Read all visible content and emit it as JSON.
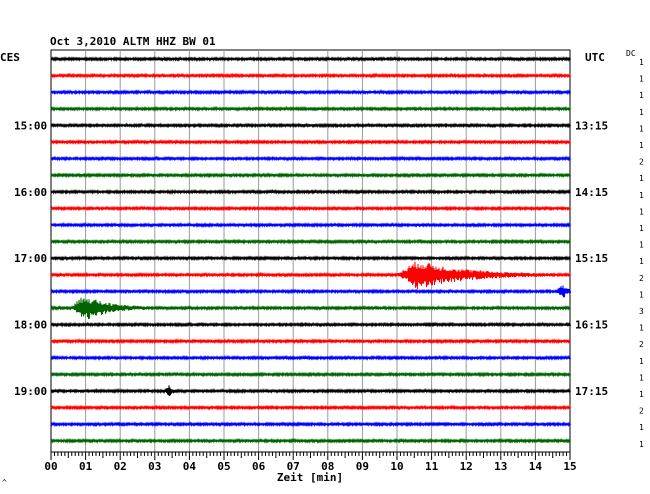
{
  "header": {
    "title": "Oct 3,2010   ALTM HHZ BW 01",
    "left_zone": "CES",
    "right_zone": "UTC",
    "corner_tag": "DC"
  },
  "chart_data": {
    "type": "line",
    "title": "Oct 3,2010   ALTM HHZ BW 01",
    "xlabel": "Zeit [min]",
    "ylabel": "",
    "xlim": [
      0,
      15
    ],
    "x_ticks": [
      "00",
      "01",
      "02",
      "03",
      "04",
      "05",
      "06",
      "07",
      "08",
      "09",
      "10",
      "11",
      "12",
      "13",
      "14",
      "15"
    ],
    "grid": true,
    "rows_per_hour": 4,
    "trace_colors": [
      "#000000",
      "#ff0000",
      "#0000ff",
      "#006400"
    ],
    "local_time_labels": [
      {
        "row": 4,
        "label": "15:00"
      },
      {
        "row": 8,
        "label": "16:00"
      },
      {
        "row": 12,
        "label": "17:00"
      },
      {
        "row": 16,
        "label": "18:00"
      },
      {
        "row": 20,
        "label": "19:00"
      }
    ],
    "utc_time_labels": [
      {
        "row": 4,
        "label": "13:15"
      },
      {
        "row": 8,
        "label": "14:15"
      },
      {
        "row": 12,
        "label": "15:15"
      },
      {
        "row": 16,
        "label": "16:15"
      },
      {
        "row": 20,
        "label": "17:15"
      }
    ],
    "right_scale_values": [
      "1",
      "1",
      "1",
      "1",
      "1",
      "1",
      "2",
      "1",
      "1",
      "1",
      "1",
      "1",
      "1",
      "2",
      "1",
      "3",
      "1",
      "2",
      "1",
      "1",
      "1",
      "2",
      "1",
      "1"
    ],
    "events": [
      {
        "row": 13,
        "start_min": 10.0,
        "peak_min": 10.6,
        "duration_min": 4.5,
        "peak_amp": 14
      },
      {
        "row": 15,
        "start_min": 0.6,
        "peak_min": 0.95,
        "duration_min": 2.2,
        "peak_amp": 13
      },
      {
        "row": 14,
        "start_min": 14.6,
        "peak_min": 14.8,
        "duration_min": 0.4,
        "peak_amp": 6
      },
      {
        "row": 20,
        "start_min": 3.3,
        "peak_min": 3.42,
        "duration_min": 0.25,
        "peak_amp": 7
      }
    ]
  }
}
